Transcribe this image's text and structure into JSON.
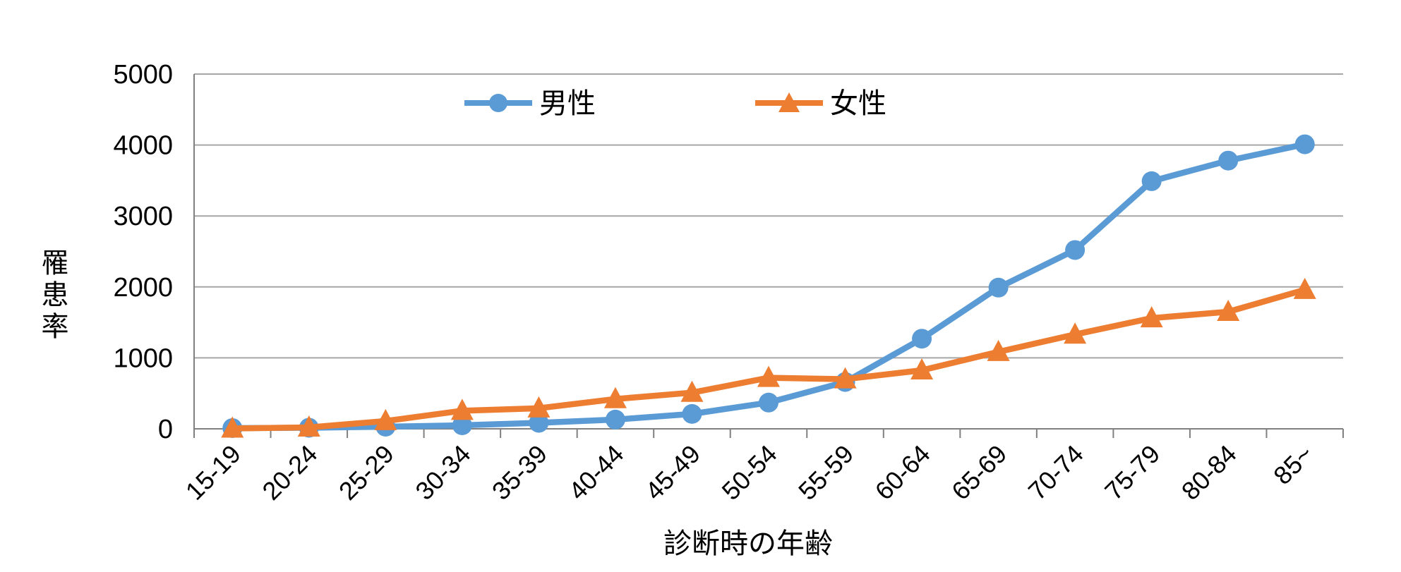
{
  "chart_data": {
    "type": "line",
    "title": "",
    "categories": [
      "15-19",
      "20-24",
      "25-29",
      "30-34",
      "35-39",
      "40-44",
      "45-49",
      "50-54",
      "55-59",
      "60-64",
      "65-69",
      "70-74",
      "75-79",
      "80-84",
      "85~"
    ],
    "series": [
      {
        "name": "男性",
        "marker": "circle",
        "color": "#5B9BD5",
        "values": [
          10,
          15,
          30,
          50,
          85,
          130,
          210,
          370,
          660,
          1270,
          1990,
          2520,
          3490,
          3780,
          4010
        ]
      },
      {
        "name": "女性",
        "marker": "triangle",
        "color": "#ED7D31",
        "values": [
          5,
          20,
          110,
          255,
          290,
          420,
          510,
          720,
          700,
          825,
          1085,
          1330,
          1560,
          1650,
          1960
        ]
      }
    ],
    "xlabel": "診断時の年齢",
    "ylabel": "罹患率",
    "ylim": [
      0,
      5000
    ],
    "y_ticks": [
      0,
      1000,
      2000,
      3000,
      4000,
      5000
    ],
    "grid": true,
    "legend_position": "top-inside"
  },
  "colors": {
    "gridline": "#A6A6A6",
    "axis": "#808080",
    "text": "#000000",
    "background": "#FFFFFF"
  }
}
